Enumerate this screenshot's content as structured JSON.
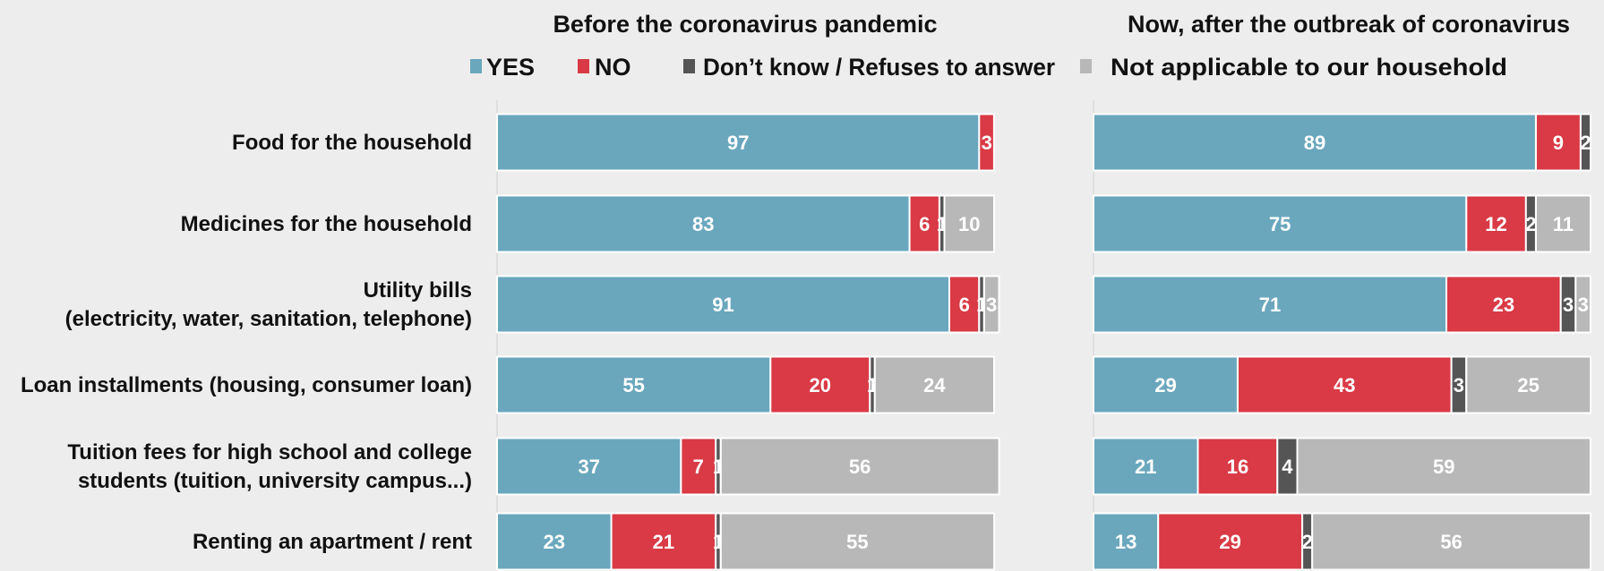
{
  "chart_data": {
    "type": "bar",
    "stacked": true,
    "orientation": "horizontal",
    "xlim": [
      0,
      100
    ],
    "grid": false,
    "legend_position": "top",
    "series": [
      {
        "name": "YES",
        "color": "#6aa7bd"
      },
      {
        "name": "NO",
        "color": "#d93a45"
      },
      {
        "name": "Don’t know / Refuses to answer",
        "color": "#555555"
      },
      {
        "name": "Not applicable to our household",
        "color": "#b8b8b8"
      }
    ],
    "categories": [
      {
        "lines": [
          "Food for the household"
        ]
      },
      {
        "lines": [
          "Medicines for the household"
        ]
      },
      {
        "lines": [
          "Utility bills",
          "(electricity, water, sanitation, telephone)"
        ]
      },
      {
        "lines": [
          "Loan installments (housing, consumer loan)"
        ]
      },
      {
        "lines": [
          "Tuition fees for high school and college",
          "students (tuition, university campus...)"
        ]
      },
      {
        "lines": [
          "Renting an apartment / rent"
        ]
      }
    ],
    "panels": [
      {
        "title": "Before the coronavirus pandemic",
        "values": [
          [
            97,
            3,
            0,
            0
          ],
          [
            83,
            6,
            1,
            10
          ],
          [
            91,
            6,
            1,
            3
          ],
          [
            55,
            20,
            1,
            24
          ],
          [
            37,
            7,
            1,
            56
          ],
          [
            23,
            21,
            1,
            55
          ]
        ]
      },
      {
        "title": "Now, after the outbreak of coronavirus",
        "values": [
          [
            89,
            9,
            2,
            0
          ],
          [
            75,
            12,
            2,
            11
          ],
          [
            71,
            23,
            3,
            3
          ],
          [
            29,
            43,
            3,
            25
          ],
          [
            21,
            16,
            4,
            59
          ],
          [
            13,
            29,
            2,
            56
          ]
        ]
      }
    ]
  }
}
